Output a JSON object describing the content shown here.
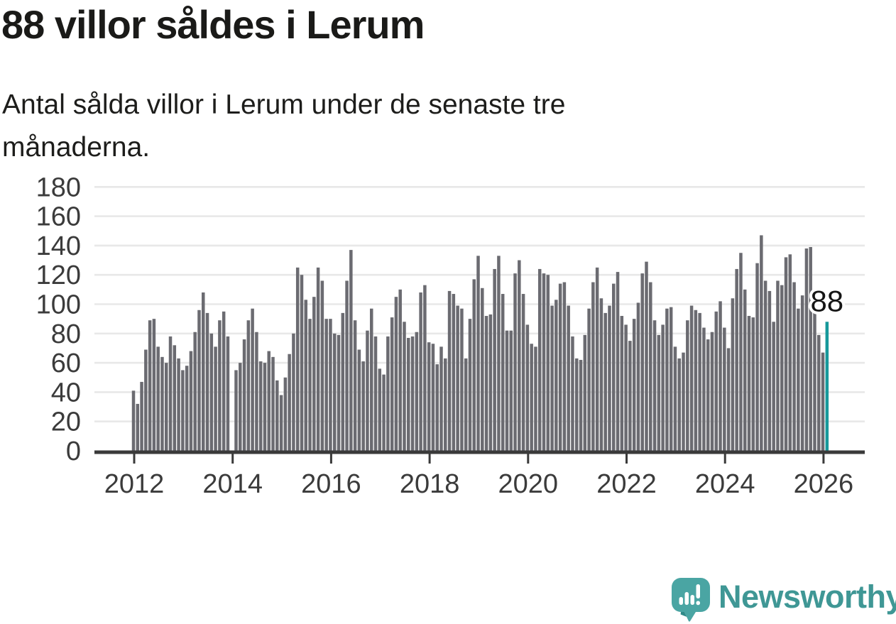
{
  "title": "88 villor såldes i Lerum",
  "subtitle": "Antal sålda villor i Lerum under de senaste tre månaderna.",
  "branding": {
    "name": "Newsworthy",
    "wordmark_color": "#3f9795",
    "icon": "newsworthy-speech-bubble-chart-icon",
    "icon_color": "#4aa5a3",
    "icon_accent_color": "#2f8a88"
  },
  "chart_data": {
    "type": "bar",
    "title": "88 villor såldes i Lerum",
    "subtitle": "Antal sålda villor i Lerum under de senaste tre månaderna.",
    "xlabel": "",
    "ylabel": "",
    "x_start": "2012-01",
    "x_end": "2026-02",
    "x_tick_labels": [
      "2012",
      "2014",
      "2016",
      "2018",
      "2020",
      "2022",
      "2024",
      "2026"
    ],
    "y_ticks": [
      0,
      20,
      40,
      60,
      80,
      100,
      120,
      140,
      160,
      180
    ],
    "ylim": [
      0,
      180
    ],
    "grid": "horizontal",
    "legend": "none",
    "bar_color": "#6b6b71",
    "highlight_color": "#17999b",
    "highlight_index": 169,
    "highlight_label": "88",
    "axis_color": "#3a3a3a",
    "gridline_color": "#e8e8e8",
    "tick_label_color": "#3b3b3b",
    "values": [
      41,
      32,
      47,
      69,
      89,
      90,
      71,
      64,
      60,
      78,
      72,
      63,
      55,
      58,
      68,
      81,
      96,
      108,
      94,
      80,
      71,
      89,
      95,
      78,
      0,
      55,
      60,
      76,
      89,
      97,
      81,
      61,
      60,
      68,
      64,
      48,
      38,
      50,
      66,
      80,
      125,
      120,
      103,
      90,
      105,
      125,
      116,
      90,
      90,
      80,
      79,
      94,
      116,
      137,
      89,
      69,
      61,
      82,
      97,
      78,
      56,
      52,
      78,
      91,
      105,
      110,
      88,
      77,
      78,
      81,
      108,
      113,
      74,
      73,
      59,
      71,
      63,
      109,
      107,
      99,
      97,
      63,
      90,
      117,
      133,
      111,
      92,
      93,
      124,
      133,
      107,
      82,
      82,
      121,
      130,
      107,
      86,
      73,
      71,
      124,
      121,
      120,
      99,
      103,
      114,
      115,
      99,
      78,
      63,
      62,
      79,
      97,
      115,
      125,
      104,
      94,
      99,
      114,
      122,
      92,
      86,
      75,
      90,
      101,
      121,
      129,
      115,
      89,
      79,
      86,
      97,
      98,
      71,
      63,
      67,
      89,
      99,
      96,
      94,
      84,
      76,
      81,
      95,
      102,
      84,
      70,
      104,
      124,
      135,
      110,
      92,
      91,
      128,
      147,
      116,
      109,
      88,
      116,
      113,
      132,
      134,
      115,
      97,
      106,
      138,
      139,
      96,
      79,
      67,
      88
    ]
  }
}
